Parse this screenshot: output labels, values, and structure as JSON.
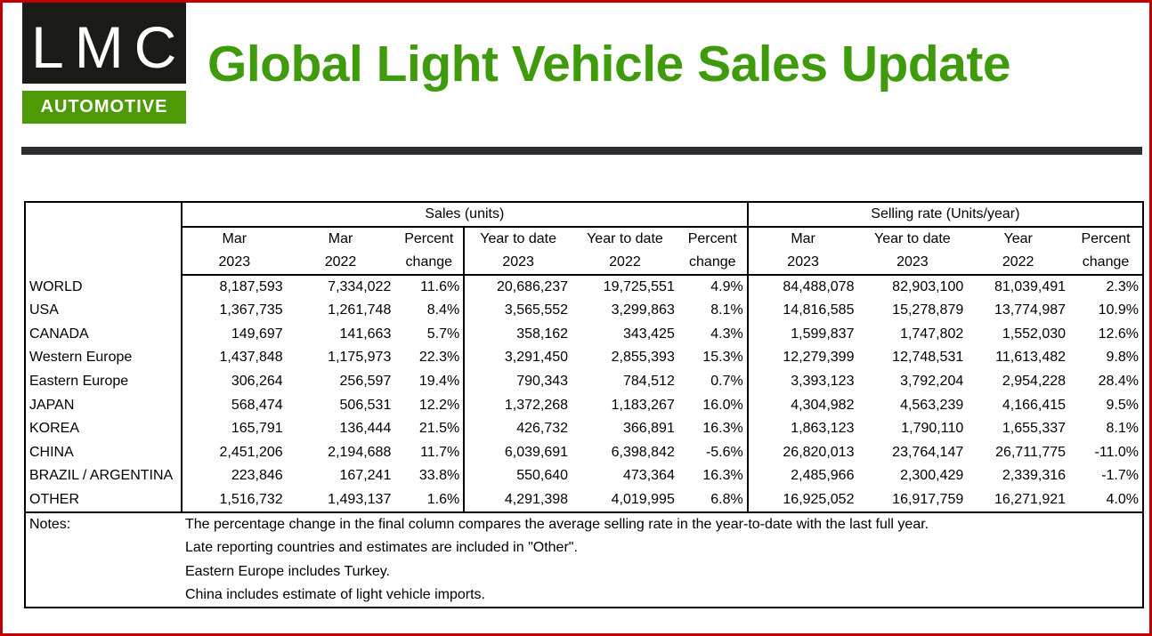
{
  "logo": {
    "name": "LMC",
    "sub": "AUTOMOTIVE"
  },
  "title": "Global Light Vehicle Sales Update",
  "table": {
    "group_headers": [
      "Sales (units)",
      "Selling rate (Units/year)"
    ],
    "columns": [
      [
        "Mar",
        "2023"
      ],
      [
        "Mar",
        "2022"
      ],
      [
        "Percent",
        "change"
      ],
      [
        "Year to date",
        "2023"
      ],
      [
        "Year to date",
        "2022"
      ],
      [
        "Percent",
        "change"
      ],
      [
        "Mar",
        "2023"
      ],
      [
        "Year to date",
        "2023"
      ],
      [
        "Year",
        "2022"
      ],
      [
        "Percent",
        "change"
      ]
    ],
    "rows": [
      [
        "WORLD",
        "8,187,593",
        "7,334,022",
        "11.6%",
        "20,686,237",
        "19,725,551",
        "4.9%",
        "84,488,078",
        "82,903,100",
        "81,039,491",
        "2.3%"
      ],
      [
        "USA",
        "1,367,735",
        "1,261,748",
        "8.4%",
        "3,565,552",
        "3,299,863",
        "8.1%",
        "14,816,585",
        "15,278,879",
        "13,774,987",
        "10.9%"
      ],
      [
        "CANADA",
        "149,697",
        "141,663",
        "5.7%",
        "358,162",
        "343,425",
        "4.3%",
        "1,599,837",
        "1,747,802",
        "1,552,030",
        "12.6%"
      ],
      [
        "Western Europe",
        "1,437,848",
        "1,175,973",
        "22.3%",
        "3,291,450",
        "2,855,393",
        "15.3%",
        "12,279,399",
        "12,748,531",
        "11,613,482",
        "9.8%"
      ],
      [
        "Eastern Europe",
        "306,264",
        "256,597",
        "19.4%",
        "790,343",
        "784,512",
        "0.7%",
        "3,393,123",
        "3,792,204",
        "2,954,228",
        "28.4%"
      ],
      [
        "JAPAN",
        "568,474",
        "506,531",
        "12.2%",
        "1,372,268",
        "1,183,267",
        "16.0%",
        "4,304,982",
        "4,563,239",
        "4,166,415",
        "9.5%"
      ],
      [
        "KOREA",
        "165,791",
        "136,444",
        "21.5%",
        "426,732",
        "366,891",
        "16.3%",
        "1,863,123",
        "1,790,110",
        "1,655,337",
        "8.1%"
      ],
      [
        "CHINA",
        "2,451,206",
        "2,194,688",
        "11.7%",
        "6,039,691",
        "6,398,842",
        "-5.6%",
        "26,820,013",
        "23,764,147",
        "26,711,775",
        "-11.0%"
      ],
      [
        "BRAZIL / ARGENTINA",
        "223,846",
        "167,241",
        "33.8%",
        "550,640",
        "473,364",
        "16.3%",
        "2,485,966",
        "2,300,429",
        "2,339,316",
        "-1.7%"
      ],
      [
        "OTHER",
        "1,516,732",
        "1,493,137",
        "1.6%",
        "4,291,398",
        "4,019,995",
        "6.8%",
        "16,925,052",
        "16,917,759",
        "16,271,921",
        "4.0%"
      ]
    ]
  },
  "notes": {
    "label": "Notes:",
    "lines": [
      "The percentage change in the final column compares the average selling rate in the year-to-date with the last full year.",
      "Late reporting countries and estimates are included in \"Other\".",
      "Eastern Europe includes Turkey.",
      "China includes estimate of light vehicle imports."
    ]
  }
}
